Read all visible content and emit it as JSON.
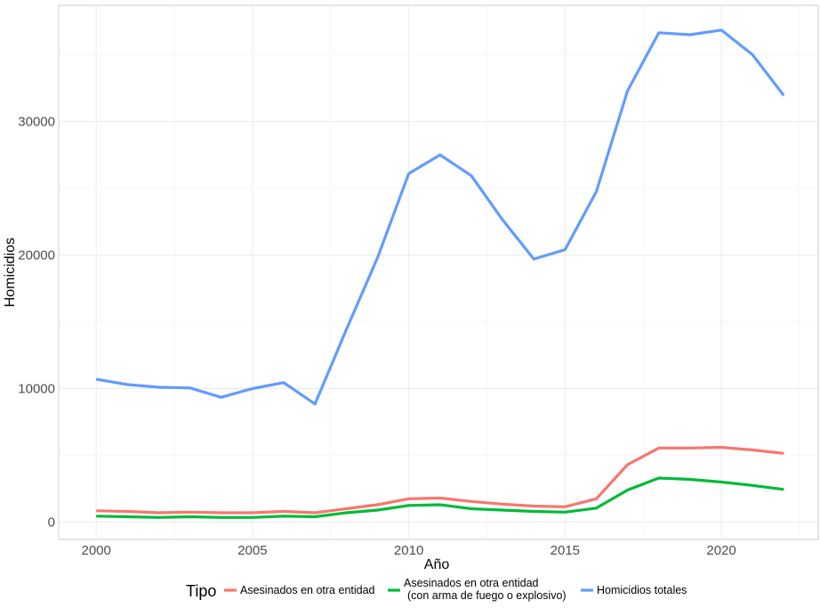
{
  "chart_data": {
    "type": "line",
    "xlabel": "Año",
    "ylabel": "Homicidios",
    "xlim": [
      1998.8,
      2023.1
    ],
    "ylim": [
      -1300,
      38700
    ],
    "xticks": [
      2000,
      2005,
      2010,
      2015,
      2020
    ],
    "yticks": [
      0,
      10000,
      20000,
      30000
    ],
    "x": [
      2000,
      2001,
      2002,
      2003,
      2004,
      2005,
      2006,
      2007,
      2008,
      2009,
      2010,
      2011,
      2012,
      2013,
      2014,
      2015,
      2016,
      2017,
      2018,
      2019,
      2020,
      2021,
      2022
    ],
    "series": [
      {
        "name": "Asesinados en otra entidad",
        "color": "#F8766D",
        "values": [
          850,
          800,
          700,
          750,
          700,
          700,
          800,
          700,
          1000,
          1300,
          1750,
          1800,
          1550,
          1350,
          1200,
          1150,
          1750,
          4300,
          5550,
          5550,
          5600,
          5400,
          5150
        ]
      },
      {
        "name": "Asesinados en otra entidad\n(con arma de fuego o explosivo)",
        "color": "#00BA38",
        "values": [
          450,
          400,
          350,
          400,
          350,
          350,
          450,
          400,
          700,
          900,
          1250,
          1300,
          1000,
          900,
          800,
          750,
          1050,
          2400,
          3300,
          3200,
          3000,
          2750,
          2450
        ]
      },
      {
        "name": "Homicidios totales",
        "color": "#619CFF",
        "values": [
          10700,
          10300,
          10100,
          10050,
          9350,
          10000,
          10450,
          8850,
          14400,
          19800,
          26100,
          27500,
          25950,
          22650,
          19700,
          20400,
          24750,
          32300,
          36650,
          36500,
          36850,
          35000,
          31950
        ]
      }
    ],
    "grid": true,
    "legend": {
      "title": "Tipo",
      "position": "bottom"
    }
  }
}
